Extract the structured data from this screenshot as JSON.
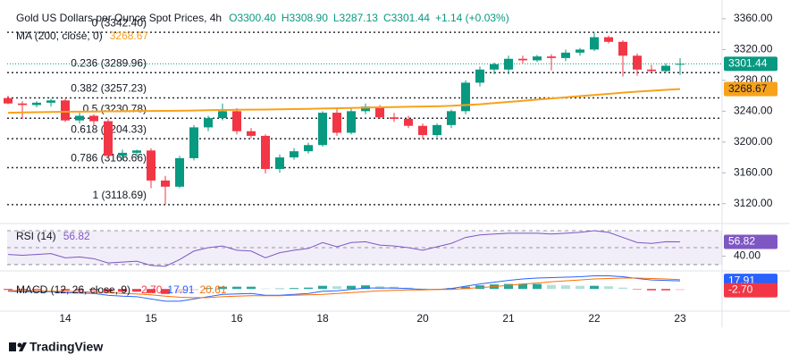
{
  "chart_data": [
    {
      "type": "candlestick",
      "title": "Gold US Dollars per Ounce Spot Prices, 4h",
      "header": [
        {
          "value": 3300.4,
          "label": "O3300.40"
        },
        {
          "value": 3308.9,
          "label": "H3308.90"
        },
        {
          "value": 3287.13,
          "label": "L3287.13"
        },
        {
          "value": 3301.44,
          "label": "C3301.44"
        },
        {
          "value": 1.14,
          "label": "+1.14 (+0.03%)"
        }
      ],
      "categories": [
        null,
        null,
        null,
        null,
        "14",
        null,
        null,
        null,
        null,
        null,
        "15",
        null,
        null,
        null,
        null,
        null,
        "16",
        null,
        null,
        null,
        null,
        null,
        "18",
        null,
        null,
        null,
        null,
        null,
        null,
        "20",
        null,
        null,
        null,
        null,
        null,
        "21",
        null,
        null,
        null,
        null,
        null,
        "22",
        null,
        null,
        null,
        null,
        null,
        "23"
      ],
      "open": [
        3257,
        3250,
        3248,
        3251,
        3254,
        3228,
        3234,
        3227,
        3182,
        3186,
        3189,
        3150,
        3142,
        3179,
        3219,
        3231,
        3240,
        3214,
        3208,
        3165,
        3180,
        3188,
        3196,
        3238,
        3212,
        3240,
        3246,
        3232,
        3230,
        3221,
        3209,
        3222,
        3240,
        3277,
        3294,
        3294,
        3308,
        3306,
        3311,
        3309,
        3316,
        3320,
        3336,
        3330,
        3312,
        3294,
        3292,
        3300.4
      ],
      "high": [
        3260,
        3253,
        3253,
        3256,
        3256,
        3238,
        3236,
        3230,
        3190,
        3190,
        3192,
        3156,
        3182,
        3222,
        3234,
        3250,
        3244,
        3218,
        3210,
        3184,
        3192,
        3199,
        3240,
        3245,
        3245,
        3250,
        3248,
        3238,
        3234,
        3224,
        3224,
        3242,
        3280,
        3298,
        3303,
        3312,
        3312,
        3313,
        3314,
        3320,
        3322,
        3342,
        3338,
        3332,
        3315,
        3300,
        3302,
        3308.9
      ],
      "low": [
        3249,
        3230,
        3245,
        3246,
        3226,
        3224,
        3222,
        3180,
        3176,
        3180,
        3140,
        3119,
        3140,
        3176,
        3214,
        3228,
        3210,
        3205,
        3159,
        3160,
        3177,
        3185,
        3194,
        3208,
        3210,
        3236,
        3230,
        3226,
        3218,
        3204,
        3206,
        3218,
        3236,
        3272,
        3288,
        3288,
        3302,
        3304,
        3293,
        3305,
        3312,
        3318,
        3328,
        3285,
        3286,
        3290,
        3290,
        3287.13
      ],
      "close": [
        3250,
        3248,
        3251,
        3254,
        3228,
        3234,
        3227,
        3182,
        3186,
        3189,
        3150,
        3142,
        3179,
        3219,
        3231,
        3240,
        3214,
        3208,
        3165,
        3180,
        3188,
        3196,
        3238,
        3212,
        3240,
        3246,
        3232,
        3230,
        3221,
        3209,
        3222,
        3240,
        3277,
        3294,
        3301,
        3308,
        3306,
        3311,
        3309,
        3316,
        3320,
        3336,
        3330,
        3312,
        3294,
        3292,
        3299,
        3301.44
      ],
      "up_color": "#089981",
      "down_color": "#f23645",
      "ma": {
        "name": "MA (200, close, 0)",
        "color": "#f7a21b",
        "values": [
          3238,
          3238.3,
          3238.6,
          3238.9,
          3239.2,
          3239.4,
          3239.6,
          3239.8,
          3240,
          3240.2,
          3240.3,
          3240.4,
          3240.6,
          3240.9,
          3241.2,
          3241.5,
          3241.8,
          3242,
          3242.2,
          3242.4,
          3242.7,
          3243,
          3243.4,
          3243.8,
          3244.2,
          3244.6,
          3245,
          3245.4,
          3245.7,
          3246,
          3246.4,
          3247,
          3248,
          3249,
          3250.5,
          3252,
          3253.5,
          3255,
          3256.5,
          3258,
          3259.5,
          3261,
          3262.5,
          3264,
          3265.3,
          3266.5,
          3267.6,
          3268.67
        ]
      },
      "fib_levels": [
        {
          "value": 3342.4,
          "label": "0 (3342.40)"
        },
        {
          "value": 3289.96,
          "label": "0.236 (3289.96)"
        },
        {
          "value": 3257.23,
          "label": "0.382 (3257.23)"
        },
        {
          "value": 3230.78,
          "label": "0.5 (3230.78)"
        },
        {
          "value": 3204.33,
          "label": "0.618 (3204.33)"
        },
        {
          "value": 3166.66,
          "label": "0.786 (3166.66)"
        },
        {
          "value": 3118.69,
          "label": "1 (3118.69)"
        }
      ],
      "ylim": [
        3100,
        3375
      ],
      "yticks": [
        {
          "value": 3120,
          "label": "3120.00"
        },
        {
          "value": 3160,
          "label": "3160.00"
        },
        {
          "value": 3200,
          "label": "3200.00"
        },
        {
          "value": 3240,
          "label": "3240.00"
        },
        {
          "value": 3280,
          "label": "3280.00"
        },
        {
          "value": 3320,
          "label": "3320.00"
        },
        {
          "value": 3360,
          "label": "3360.00"
        }
      ],
      "grid": false
    },
    {
      "type": "line",
      "title": "RSI (14)",
      "color": "#7e57c2",
      "values": [
        42,
        41,
        42,
        43,
        38,
        39,
        37,
        32,
        33,
        34,
        29,
        28,
        36,
        46,
        50,
        52,
        47,
        46,
        38,
        44,
        47,
        49,
        56,
        51,
        56,
        57,
        53,
        52,
        50,
        47,
        51,
        55,
        62,
        65,
        66,
        67,
        67,
        67,
        66,
        67,
        68,
        70,
        68,
        62,
        56,
        55,
        57,
        56.82
      ],
      "levels": [
        30,
        50,
        70
      ],
      "ylim": [
        26.8,
        74.2
      ],
      "yticks": [
        {
          "value": 40,
          "label": "40.00"
        }
      ]
    },
    {
      "type": "macd",
      "title": "MACD (12, 26, close, 9)",
      "ylim": [
        -45,
        30
      ],
      "histogram": {
        "value_label": "-2.70",
        "color": "#f23645",
        "values": [
          -2,
          -2,
          -2,
          -1,
          -3,
          -3,
          -3,
          -6,
          -6,
          -6,
          -9,
          -11,
          -9,
          -3,
          2,
          5,
          5,
          5,
          1,
          1,
          2,
          3,
          7,
          6,
          7,
          8,
          6,
          5,
          3,
          1,
          0,
          2,
          5,
          8,
          10,
          11,
          11,
          11,
          9,
          8,
          7,
          7,
          6,
          3,
          -1,
          -3,
          -3,
          -2.7
        ]
      },
      "macd": {
        "value_label": "17.91",
        "color": "#2962ff",
        "values": [
          -5,
          -6,
          -6,
          -6,
          -8,
          -9,
          -10,
          -14,
          -16,
          -17,
          -22,
          -27,
          -27,
          -22,
          -17,
          -12,
          -11,
          -10,
          -14,
          -14,
          -12,
          -10,
          -5,
          -4,
          -1,
          2,
          2,
          2,
          1,
          -1,
          -1,
          1,
          6,
          11,
          15,
          19,
          22,
          24,
          25,
          26,
          27,
          29,
          29,
          27,
          23,
          20,
          19,
          17.91
        ]
      },
      "signal": {
        "value_label": "20.61",
        "color": "#ff6d00",
        "values": [
          -3,
          -4,
          -4,
          -5,
          -5,
          -6,
          -7,
          -8,
          -10,
          -11,
          -13,
          -16,
          -18,
          -19,
          -19,
          -17,
          -16,
          -15,
          -15,
          -15,
          -14,
          -13,
          -12,
          -10,
          -8,
          -6,
          -4,
          -3,
          -2,
          -2,
          -1,
          -1,
          1,
          3,
          5,
          8,
          11,
          13,
          16,
          18,
          20,
          22,
          23,
          24,
          24,
          23,
          22,
          20.61
        ]
      }
    }
  ],
  "branding": "TradingView"
}
